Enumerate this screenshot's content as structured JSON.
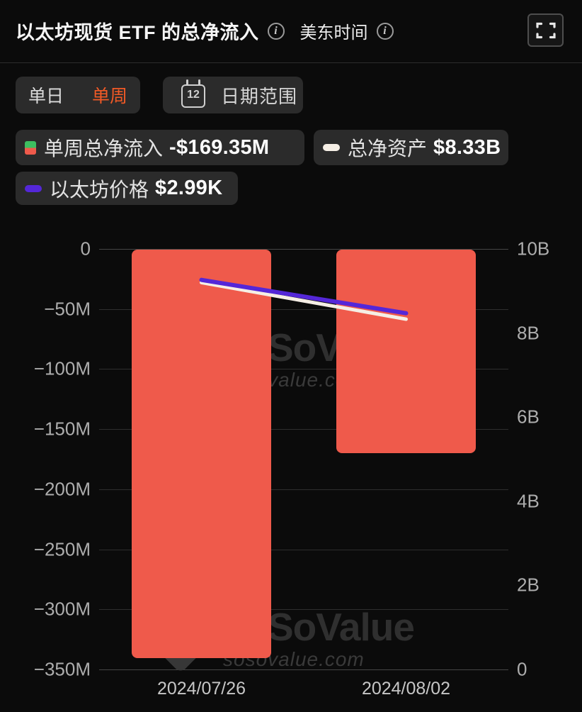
{
  "header": {
    "title": "以太坊现货 ETF 的总净流入",
    "timezone_label": "美东时间"
  },
  "controls": {
    "period_options": [
      {
        "label": "单日",
        "active": false
      },
      {
        "label": "单周",
        "active": true
      }
    ],
    "date_range_label": "日期范围",
    "calendar_icon_day": "12"
  },
  "legend": [
    {
      "name": "单周总净流入",
      "value": "-$169.35M",
      "swatch": "candle-green-red"
    },
    {
      "name": "总净资产",
      "value": "$8.33B",
      "swatch": "dash-white"
    },
    {
      "name": "以太坊价格",
      "value": "$2.99K",
      "swatch": "dash-purple"
    }
  ],
  "watermark": {
    "brand": "SoValue",
    "url": "sosovalue.com"
  },
  "colors": {
    "background": "#0b0b0b",
    "panel": "#2b2b2b",
    "bar_red": "#ef5a4b",
    "line_purple": "#5427d8",
    "line_white": "#f5eee5",
    "legend_green": "#3dbe60",
    "accent_orange": "#f25a26",
    "gridline": "#2e2e2e",
    "axis_text": "#adadad"
  },
  "chart_data": {
    "type": "bar",
    "categories": [
      "2024/07/26",
      "2024/08/02"
    ],
    "series": [
      {
        "name": "单周总净流入",
        "type": "bar",
        "unit": "USD millions",
        "axis": "left",
        "color": "#ef5a4b",
        "values": [
          -340,
          -169.35
        ]
      },
      {
        "name": "总净资产",
        "type": "line",
        "unit": "USD billions",
        "axis": "right",
        "color": "#f5eee5",
        "values": [
          9.2,
          8.33
        ]
      },
      {
        "name": "以太坊价格",
        "type": "line",
        "unit": "USD thousands",
        "axis": "hidden",
        "color": "#5427d8",
        "values": [
          3.27,
          2.99
        ]
      }
    ],
    "left_axis": {
      "ticks": [
        "0",
        "−50M",
        "−100M",
        "−150M",
        "−200M",
        "−250M",
        "−300M",
        "−350M"
      ],
      "range": [
        0,
        -350
      ]
    },
    "right_axis": {
      "ticks": [
        "10B",
        "8B",
        "6B",
        "4B",
        "2B",
        "0"
      ],
      "range": [
        0,
        10
      ]
    },
    "grid": true,
    "legend_position": "top-left",
    "latest_weekly_net_inflow": "-$169.35M",
    "latest_total_net_assets": "$8.33B",
    "latest_eth_price": "$2.99K"
  }
}
